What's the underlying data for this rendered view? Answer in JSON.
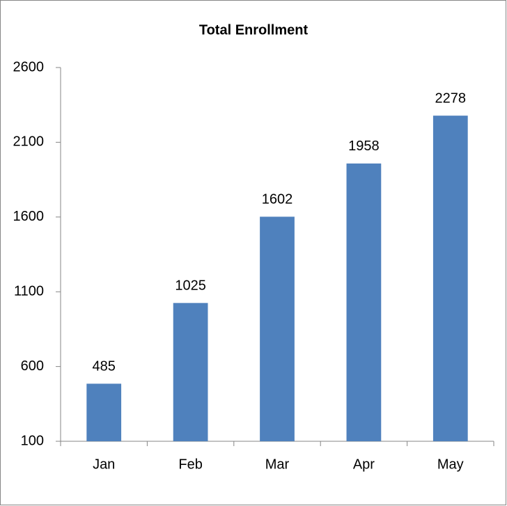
{
  "chart_data": {
    "type": "bar",
    "title": "Total Enrollment",
    "categories": [
      "Jan",
      "Feb",
      "Mar",
      "Apr",
      "May"
    ],
    "values": [
      485,
      1025,
      1602,
      1958,
      2278
    ],
    "color": "#4f81bd",
    "ylim": [
      100,
      2600
    ],
    "yticks": [
      100,
      600,
      1100,
      1600,
      2100,
      2600
    ],
    "grid": false,
    "data_labels": true
  }
}
